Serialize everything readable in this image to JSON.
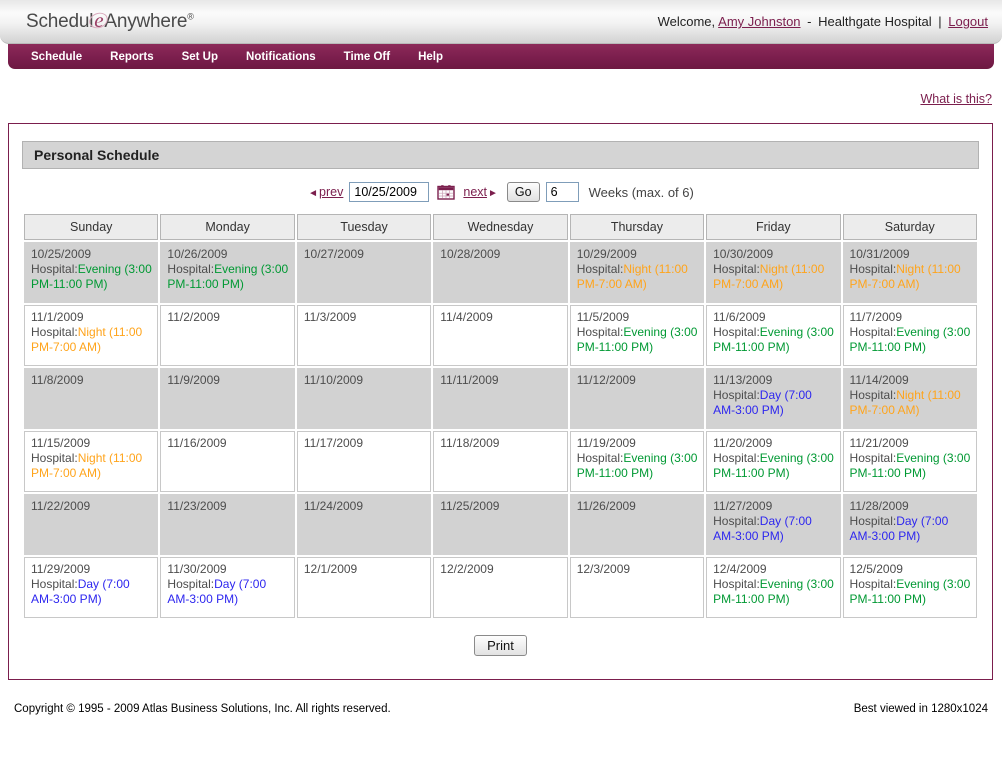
{
  "header": {
    "logo_part1": "Schedul",
    "logo_e": "e",
    "logo_part2": "Anywhere",
    "logo_reg": "®",
    "welcome_prefix": "Welcome,",
    "user_name": "Amy Johnston",
    "separator": "-",
    "facility": "Healthgate Hospital",
    "divider": "|",
    "logout_label": "Logout"
  },
  "nav": {
    "items": [
      {
        "label": "Schedule"
      },
      {
        "label": "Reports"
      },
      {
        "label": "Set Up"
      },
      {
        "label": "Notifications"
      },
      {
        "label": "Time Off"
      },
      {
        "label": "Help"
      }
    ]
  },
  "help_link": "What is this?",
  "icons": {
    "prev_arrow": "◄",
    "next_arrow": "►"
  },
  "panel": {
    "title": "Personal Schedule",
    "date_nav": {
      "prev_label": "prev",
      "date_value": "10/25/2009",
      "next_label": "next",
      "go_label": "Go",
      "weeks_value": "6",
      "weeks_label": "Weeks (max. of 6)"
    },
    "print_label": "Print"
  },
  "calendar": {
    "day_headers": [
      "Sunday",
      "Monday",
      "Tuesday",
      "Wednesday",
      "Thursday",
      "Friday",
      "Saturday"
    ],
    "facility_prefix": "Hospital:",
    "shifts": {
      "evening": {
        "label": "Evening (3:00 PM-11:00 PM)",
        "color": "#009933"
      },
      "night": {
        "label": "Night (11:00 PM-7:00 AM)",
        "color": "#ffa41b"
      },
      "day": {
        "label": "Day (7:00 AM-3:00 PM)",
        "color": "#2d26ef"
      }
    },
    "rows": [
      {
        "shaded": true,
        "cells": [
          {
            "date": "10/25/2009",
            "shift": "evening"
          },
          {
            "date": "10/26/2009",
            "shift": "evening"
          },
          {
            "date": "10/27/2009",
            "shift": null
          },
          {
            "date": "10/28/2009",
            "shift": null
          },
          {
            "date": "10/29/2009",
            "shift": "night"
          },
          {
            "date": "10/30/2009",
            "shift": "night"
          },
          {
            "date": "10/31/2009",
            "shift": "night"
          }
        ]
      },
      {
        "shaded": false,
        "cells": [
          {
            "date": "11/1/2009",
            "shift": "night"
          },
          {
            "date": "11/2/2009",
            "shift": null
          },
          {
            "date": "11/3/2009",
            "shift": null
          },
          {
            "date": "11/4/2009",
            "shift": null
          },
          {
            "date": "11/5/2009",
            "shift": "evening"
          },
          {
            "date": "11/6/2009",
            "shift": "evening"
          },
          {
            "date": "11/7/2009",
            "shift": "evening"
          }
        ]
      },
      {
        "shaded": true,
        "cells": [
          {
            "date": "11/8/2009",
            "shift": null
          },
          {
            "date": "11/9/2009",
            "shift": null
          },
          {
            "date": "11/10/2009",
            "shift": null
          },
          {
            "date": "11/11/2009",
            "shift": null
          },
          {
            "date": "11/12/2009",
            "shift": null
          },
          {
            "date": "11/13/2009",
            "shift": "day"
          },
          {
            "date": "11/14/2009",
            "shift": "night"
          }
        ]
      },
      {
        "shaded": false,
        "cells": [
          {
            "date": "11/15/2009",
            "shift": "night"
          },
          {
            "date": "11/16/2009",
            "shift": null
          },
          {
            "date": "11/17/2009",
            "shift": null
          },
          {
            "date": "11/18/2009",
            "shift": null
          },
          {
            "date": "11/19/2009",
            "shift": "evening"
          },
          {
            "date": "11/20/2009",
            "shift": "evening"
          },
          {
            "date": "11/21/2009",
            "shift": "evening"
          }
        ]
      },
      {
        "shaded": true,
        "cells": [
          {
            "date": "11/22/2009",
            "shift": null
          },
          {
            "date": "11/23/2009",
            "shift": null
          },
          {
            "date": "11/24/2009",
            "shift": null
          },
          {
            "date": "11/25/2009",
            "shift": null
          },
          {
            "date": "11/26/2009",
            "shift": null
          },
          {
            "date": "11/27/2009",
            "shift": "day"
          },
          {
            "date": "11/28/2009",
            "shift": "day"
          }
        ]
      },
      {
        "shaded": false,
        "cells": [
          {
            "date": "11/29/2009",
            "shift": "day"
          },
          {
            "date": "11/30/2009",
            "shift": "day"
          },
          {
            "date": "12/1/2009",
            "shift": null
          },
          {
            "date": "12/2/2009",
            "shift": null
          },
          {
            "date": "12/3/2009",
            "shift": null
          },
          {
            "date": "12/4/2009",
            "shift": "evening"
          },
          {
            "date": "12/5/2009",
            "shift": "evening"
          }
        ]
      }
    ]
  },
  "footer": {
    "copyright": "Copyright © 1995 - 2009 Atlas Business Solutions, Inc. All rights reserved.",
    "best_viewed": "Best viewed in 1280x1024"
  },
  "colors": {
    "accent": "#7b1e4d",
    "shaded_row": "#d2d2d2"
  }
}
